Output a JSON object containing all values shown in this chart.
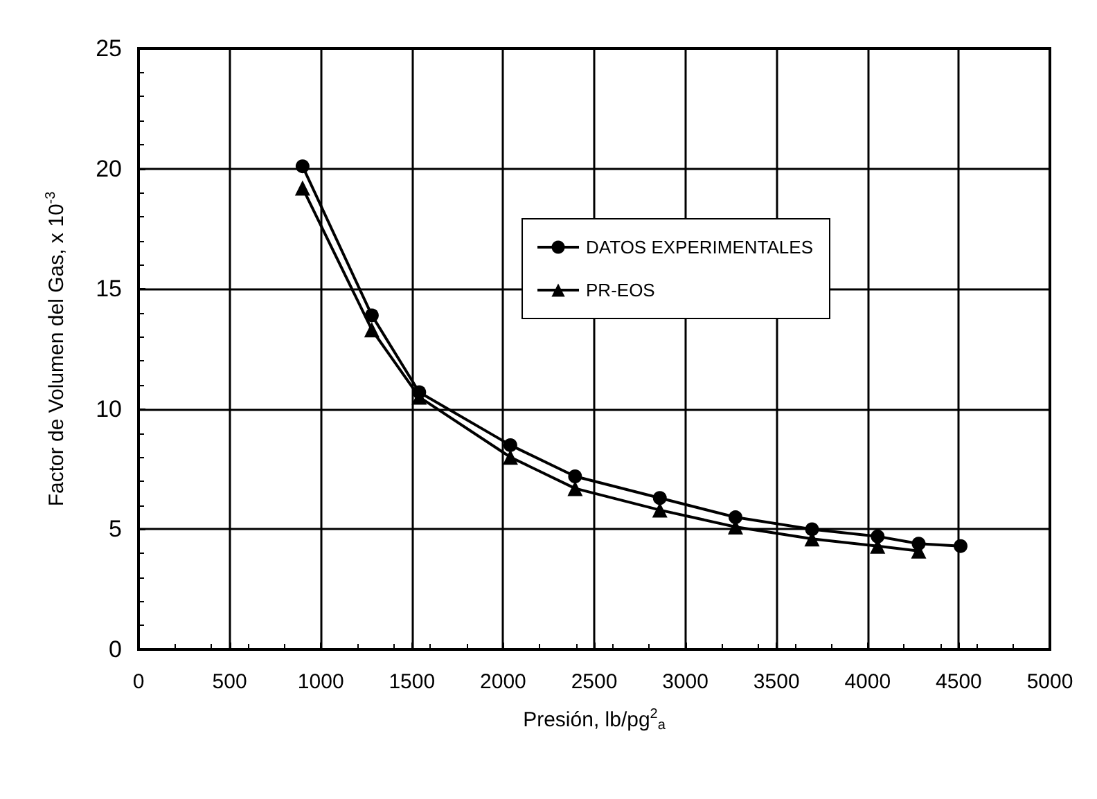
{
  "chart_data": {
    "type": "line",
    "xlabel": "Presión, lb/pg$^{2}$$_{a}$",
    "ylabel": "Factor de Volumen del Gas, x 10$^{-3}$",
    "xlim": [
      0,
      5000
    ],
    "xticks": [
      0,
      500,
      1000,
      1500,
      2000,
      2500,
      3000,
      3500,
      4000,
      4500,
      5000
    ],
    "ylim": [
      0,
      25
    ],
    "yticks": [
      0,
      5,
      10,
      15,
      20,
      25
    ],
    "grid": true,
    "legend": "right",
    "series": [
      {
        "name": "DATOS EXPERIMENTALES",
        "color": "#000000",
        "marker": "circle",
        "x": [
          900,
          1280,
          1540,
          2040,
          2395,
          2860,
          3275,
          3695,
          4055,
          4280,
          4510
        ],
        "values": [
          20.1,
          13.9,
          10.7,
          8.5,
          7.2,
          6.3,
          5.5,
          5.0,
          4.7,
          4.4,
          4.3
        ]
      },
      {
        "name": "PR-EOS",
        "color": "#000000",
        "marker": "triangle",
        "x": [
          900,
          1280,
          1540,
          2040,
          2395,
          2860,
          3275,
          3695,
          4055,
          4280
        ],
        "values": [
          19.2,
          13.3,
          10.5,
          8.0,
          6.7,
          5.8,
          5.1,
          4.6,
          4.3,
          4.1
        ]
      }
    ]
  }
}
